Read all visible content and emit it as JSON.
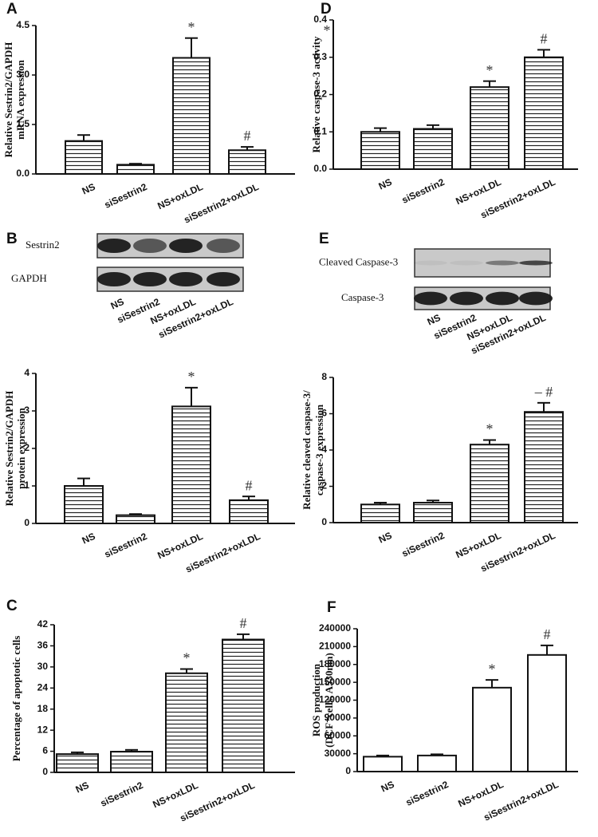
{
  "chart_data": [
    {
      "type": "bar",
      "panel": "A",
      "ylabel": [
        "Relative Sestrin2/GAPDH",
        "mRNA expression"
      ],
      "categories": [
        "NS",
        "siSestrin2",
        "NS+oxLDL",
        "siSestrin2+oxLDL"
      ],
      "values": [
        1.0,
        0.28,
        3.52,
        0.72
      ],
      "errors": [
        0.18,
        0.03,
        0.6,
        0.1
      ],
      "annotations": [
        null,
        null,
        "*",
        "#"
      ],
      "hatched": true,
      "color": "#111111",
      "ylim": [
        0,
        4.5
      ],
      "yticks": [
        {
          "value": 0,
          "label": "0.0"
        },
        1.5,
        {
          "value": 3,
          "label": "3.0"
        },
        4.5
      ]
    },
    {
      "type": "bar",
      "panel": "D",
      "ylabel": [
        "Relative caspase-3 activity"
      ],
      "corner_mark": "*",
      "categories": [
        "NS",
        "siSestrin2",
        "NS+oxLDL",
        "siSestrin2+oxLDL"
      ],
      "values": [
        0.1,
        0.108,
        0.22,
        0.3
      ],
      "errors": [
        0.01,
        0.01,
        0.016,
        0.02
      ],
      "annotations": [
        null,
        null,
        "*",
        "#"
      ],
      "hatched": true,
      "color": "#111111",
      "ylim": [
        0,
        0.4
      ],
      "yticks": [
        {
          "value": 0,
          "label": "0.0"
        },
        0.1,
        0.2,
        0.3,
        0.4
      ]
    },
    {
      "type": "bar",
      "panel": "B",
      "ylabel": [
        "Relative Sestrin2/GAPDH",
        "protein expression"
      ],
      "blot": {
        "rows": [
          "Sestrin2",
          "GAPDH"
        ],
        "categories": [
          "NS",
          "siSestrin2",
          "NS+oxLDL",
          "siSestrin2+oxLDL"
        ]
      },
      "categories": [
        "NS",
        "siSestrin2",
        "NS+oxLDL",
        "siSestrin2+oxLDL"
      ],
      "values": [
        1.0,
        0.22,
        3.12,
        0.62
      ],
      "errors": [
        0.2,
        0.03,
        0.5,
        0.1
      ],
      "annotations": [
        null,
        null,
        "*",
        "#"
      ],
      "hatched": true,
      "color": "#111111",
      "ylim": [
        0,
        4
      ],
      "yticks": [
        0,
        1,
        2,
        3,
        4
      ]
    },
    {
      "type": "bar",
      "panel": "E",
      "ylabel": [
        "Relative cleaved caspase-3/",
        "caspase-3 expression"
      ],
      "blot": {
        "rows": [
          "Cleaved Caspase-3",
          "Caspase-3"
        ],
        "categories": [
          "NS",
          "siSestrin2",
          "NS+oxLDL",
          "siSestrin2+oxLDL"
        ]
      },
      "categories": [
        "NS",
        "siSestrin2",
        "NS+oxLDL",
        "siSestrin2+oxLDL"
      ],
      "values": [
        1.0,
        1.1,
        4.3,
        6.1
      ],
      "errors": [
        0.1,
        0.12,
        0.25,
        0.5
      ],
      "annotations": [
        null,
        null,
        "*",
        "– #"
      ],
      "hatched": true,
      "color": "#111111",
      "ylim": [
        0,
        8
      ],
      "yticks": [
        0,
        2,
        4,
        6,
        8
      ]
    },
    {
      "type": "bar",
      "panel": "C",
      "ylabel": [
        "Percentage of apoptotic cells"
      ],
      "categories": [
        "NS",
        "siSestrin2",
        "NS+oxLDL",
        "siSestrin2+oxLDL"
      ],
      "values": [
        5.2,
        5.9,
        28.2,
        37.8
      ],
      "errors": [
        0.5,
        0.5,
        1.2,
        1.5
      ],
      "annotations": [
        null,
        null,
        "*",
        "#"
      ],
      "hatched": true,
      "color": "#111111",
      "ylim": [
        0,
        42
      ],
      "yticks": [
        0,
        6,
        12,
        18,
        24,
        30,
        36,
        42
      ]
    },
    {
      "type": "bar",
      "panel": "F",
      "ylabel": [
        "ROS production",
        "(DCF⁺cells, A530nm)"
      ],
      "categories": [
        "NS",
        "siSestrin2",
        "NS+oxLDL",
        "siSestrin2+oxLDL"
      ],
      "values": [
        25000,
        27000,
        141000,
        196000
      ],
      "errors": [
        2000,
        2000,
        13000,
        16000
      ],
      "annotations": [
        null,
        null,
        "*",
        "#"
      ],
      "hatched": false,
      "color": "#111111",
      "ylim": [
        0,
        240000
      ],
      "yticks": [
        0,
        30000,
        60000,
        90000,
        120000,
        150000,
        180000,
        210000,
        240000
      ]
    }
  ]
}
